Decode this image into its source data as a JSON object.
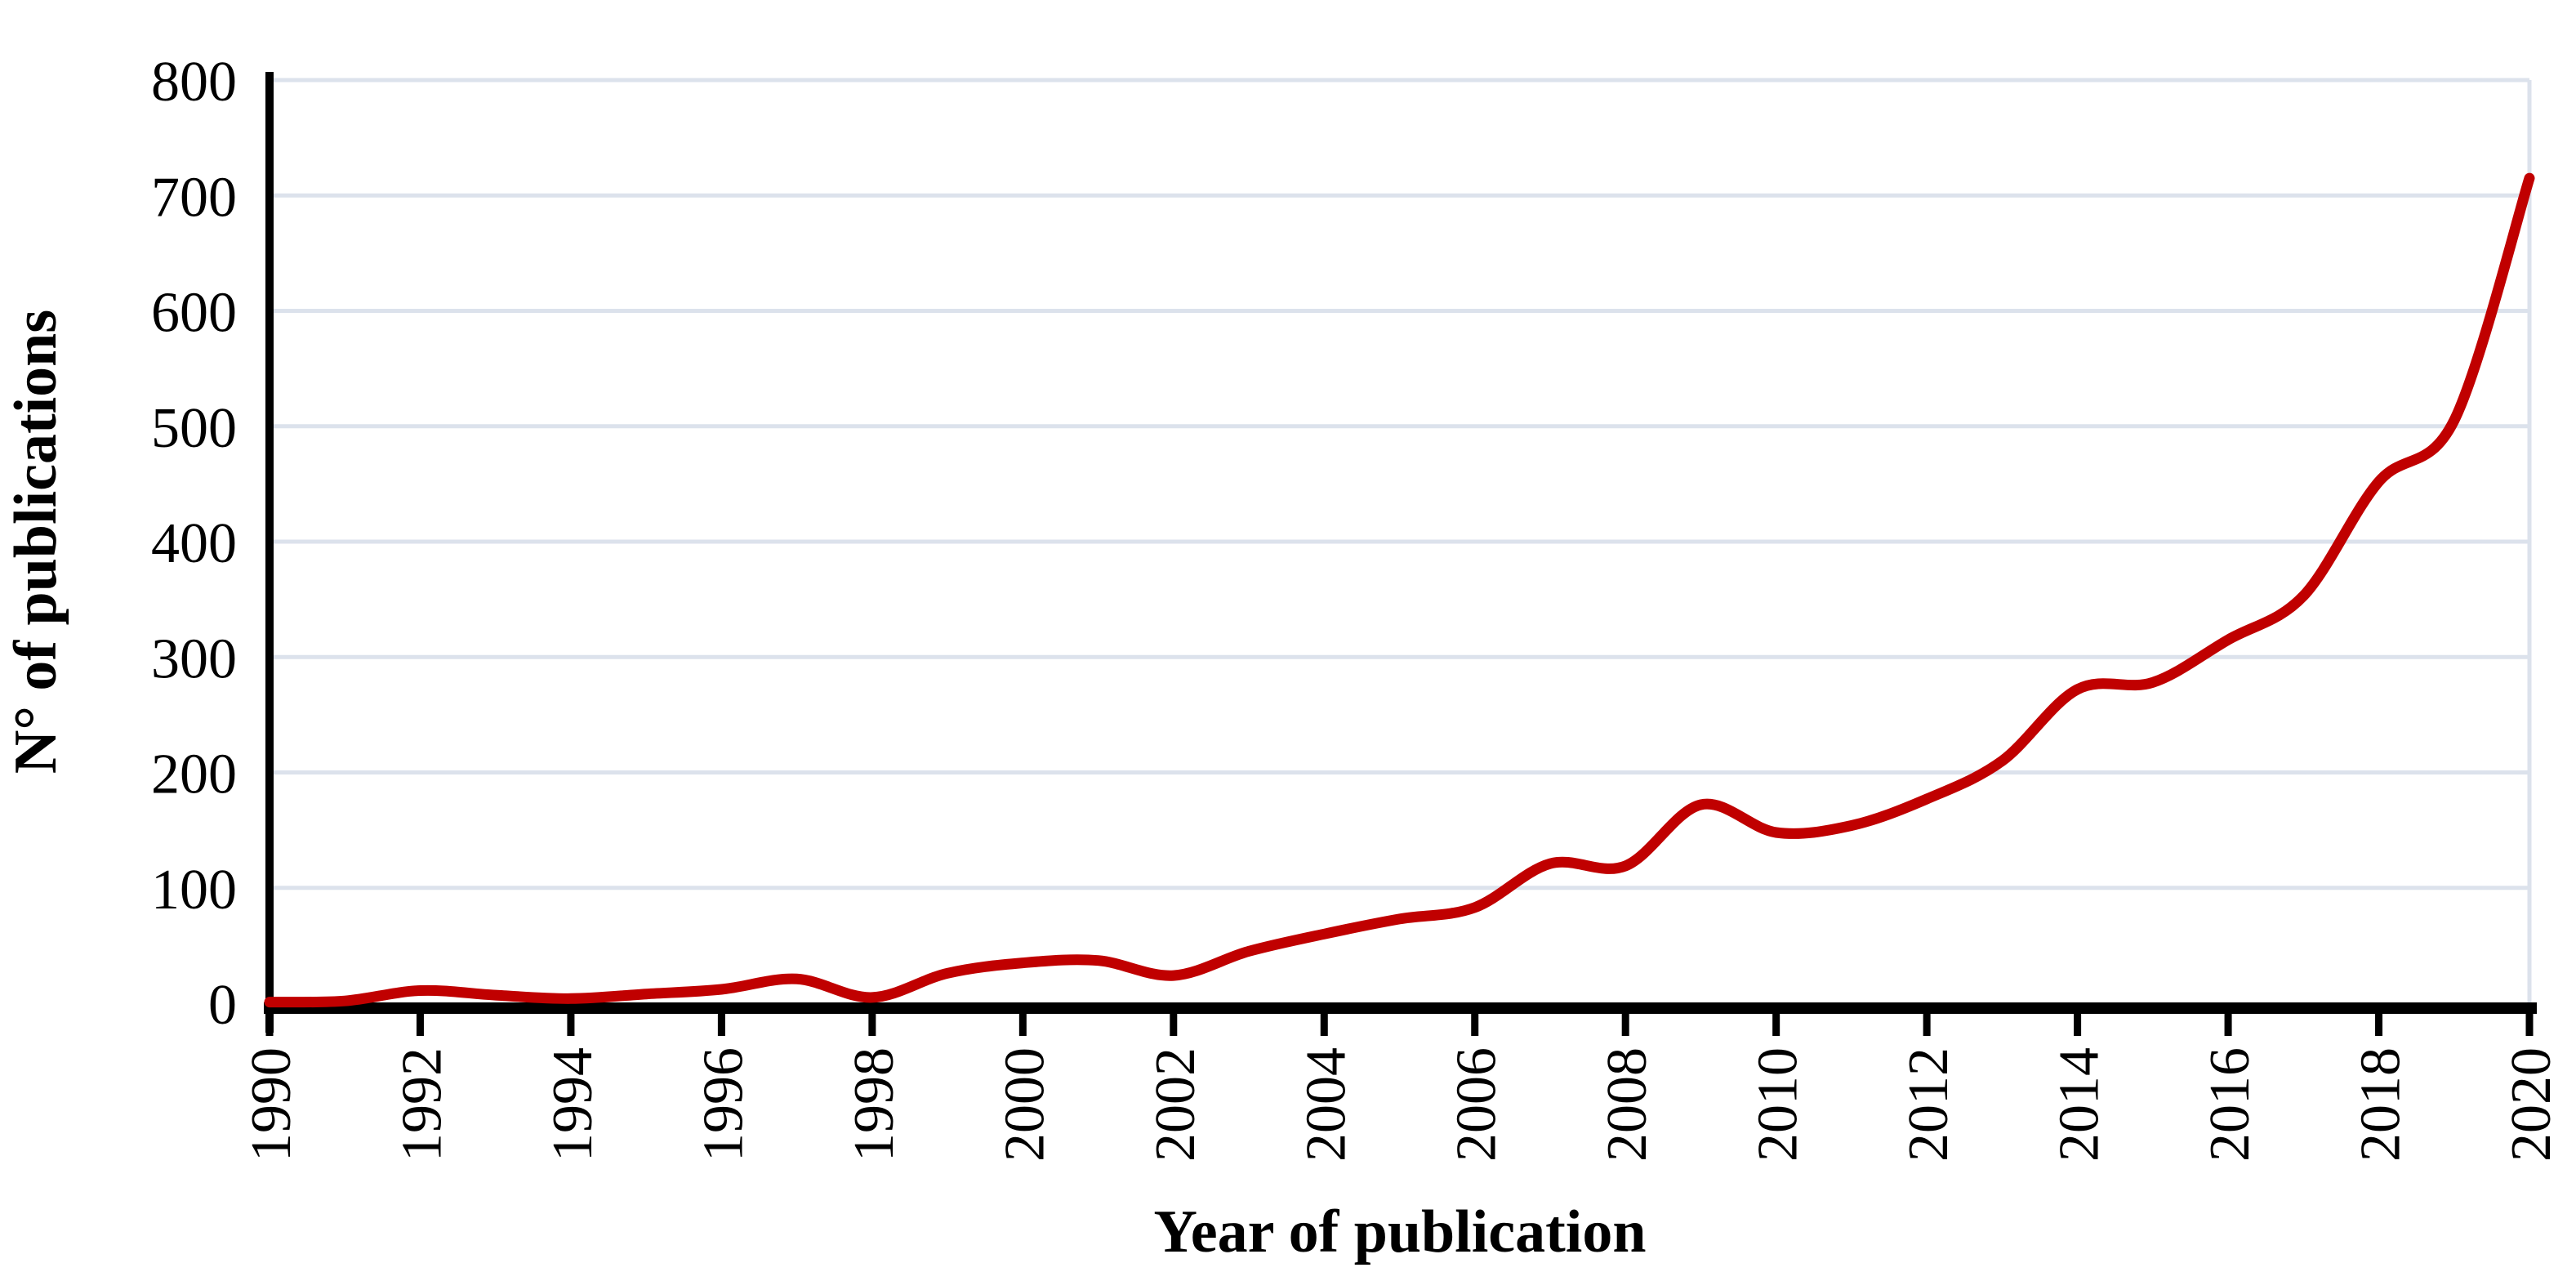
{
  "page": {
    "background": "#ffffff"
  },
  "chart_data": {
    "type": "line",
    "title": "",
    "xlabel": "Year of publication",
    "ylabel": "N° of publications",
    "x": [
      1990,
      1991,
      1992,
      1993,
      1994,
      1995,
      1996,
      1997,
      1998,
      1999,
      2000,
      2001,
      2002,
      2003,
      2004,
      2005,
      2006,
      2007,
      2008,
      2009,
      2010,
      2011,
      2012,
      2013,
      2014,
      2015,
      2016,
      2017,
      2018,
      2019,
      2020
    ],
    "series": [
      {
        "name": "Number of publications",
        "color": "#c00000",
        "values": [
          1,
          2,
          11,
          7,
          4,
          8,
          12,
          21,
          5,
          26,
          35,
          37,
          24,
          45,
          60,
          73,
          83,
          121,
          119,
          172,
          148,
          154,
          177,
          210,
          272,
          278,
          315,
          353,
          452,
          505,
          715
        ]
      }
    ],
    "xlim": [
      1990,
      2020
    ],
    "ylim": [
      0,
      800
    ],
    "ytick_step": 100,
    "xtick_step": 2,
    "y_ticks": [
      0,
      100,
      200,
      300,
      400,
      500,
      600,
      700,
      800
    ],
    "x_ticks": [
      1990,
      1992,
      1994,
      1996,
      1998,
      2000,
      2002,
      2004,
      2006,
      2008,
      2010,
      2012,
      2014,
      2016,
      2018,
      2020
    ],
    "grid": "horizontal",
    "smooth": true,
    "legend": "none",
    "gridline_color": "#dce2ec",
    "axis_color": "#000000",
    "label_color": "#000000"
  }
}
